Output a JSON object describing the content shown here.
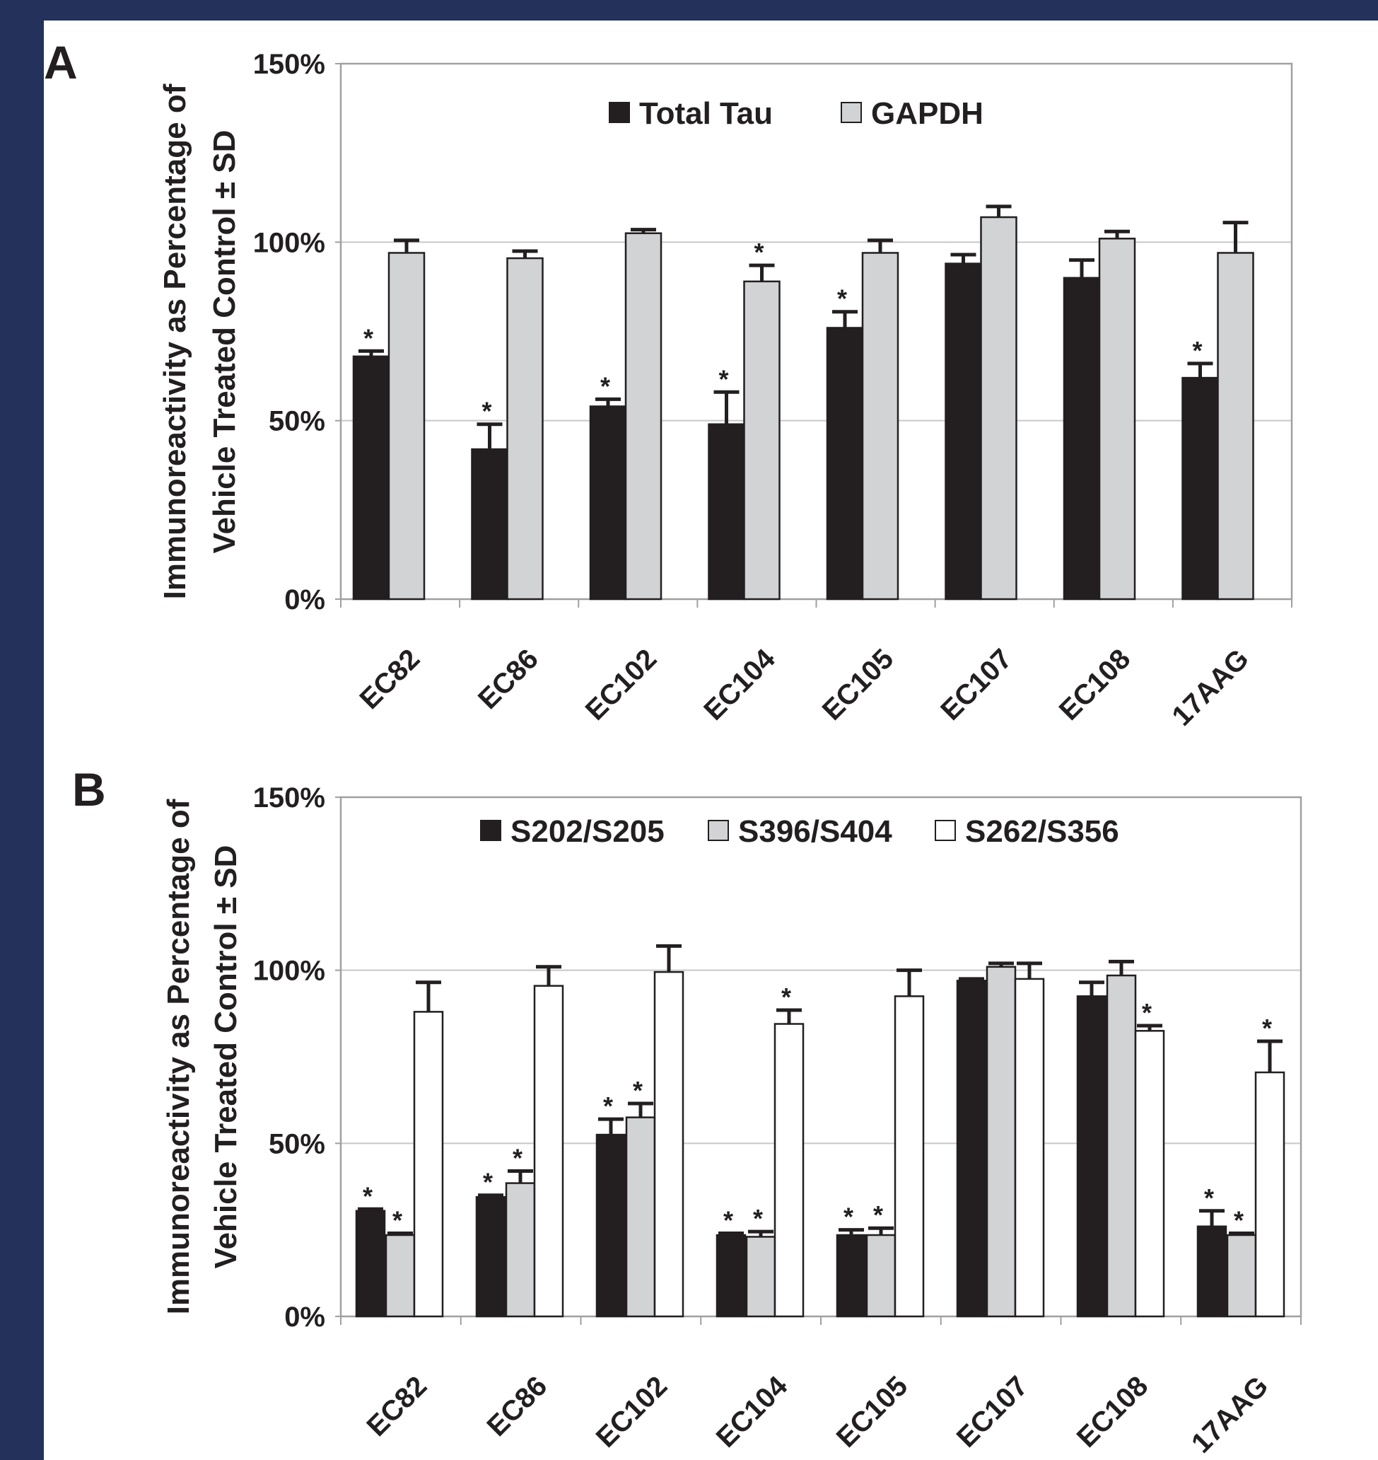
{
  "colors": {
    "frame": "#24315a",
    "panel": "#ffffff",
    "black_series": "#231f20",
    "gray_series": "#d1d3d4",
    "white_series": "#ffffff",
    "axis": "#a0a0a0",
    "grid": "#c8c8c8"
  },
  "chart_data": [
    {
      "panel_label": "A",
      "type": "bar",
      "ylabel_lines": [
        "Immunoreactivity as Percentage of",
        "Vehicle Treated Control ± SD"
      ],
      "ylim": [
        0,
        150
      ],
      "yticks": [
        0,
        50,
        100,
        150
      ],
      "ytick_labels": [
        "0%",
        "50%",
        "100%",
        "150%"
      ],
      "grid": true,
      "legend_position": "top-center",
      "categories": [
        "EC82",
        "EC86",
        "EC102",
        "EC104",
        "EC105",
        "EC107",
        "EC108",
        "17AAG"
      ],
      "series": [
        {
          "name": "Total Tau",
          "color": "#231f20",
          "values": [
            68,
            42,
            54,
            49,
            76,
            94,
            90,
            62
          ],
          "errors": [
            1.5,
            7,
            2,
            9,
            4.5,
            2.5,
            5,
            4
          ],
          "significant": [
            true,
            true,
            true,
            true,
            true,
            false,
            false,
            true
          ]
        },
        {
          "name": "GAPDH",
          "color": "#d1d3d4",
          "values": [
            97,
            95.5,
            102.5,
            89,
            97,
            107,
            101,
            97
          ],
          "errors": [
            3.5,
            2,
            1,
            4.5,
            3.5,
            3,
            2,
            8.5
          ],
          "significant": [
            false,
            false,
            false,
            true,
            false,
            false,
            false,
            false
          ]
        }
      ],
      "significance_marker": "*"
    },
    {
      "panel_label": "B",
      "type": "bar",
      "ylabel_lines": [
        "Immunoreactivity as Percentage of",
        "Vehicle Treated Control ± SD"
      ],
      "ylim": [
        0,
        150
      ],
      "yticks": [
        0,
        50,
        100,
        150
      ],
      "ytick_labels": [
        "0%",
        "50%",
        "100%",
        "150%"
      ],
      "grid": true,
      "legend_position": "top-center",
      "categories": [
        "EC82",
        "EC86",
        "EC102",
        "EC104",
        "EC105",
        "EC107",
        "EC108",
        "17AAG"
      ],
      "series": [
        {
          "name": "S202/S205",
          "color": "#231f20",
          "values": [
            30.5,
            34.5,
            52.5,
            23.5,
            23.5,
            97,
            92.5,
            26
          ],
          "errors": [
            0.5,
            0.5,
            4.5,
            0.5,
            1.5,
            0.5,
            4,
            4.5
          ],
          "significant": [
            true,
            true,
            true,
            true,
            true,
            false,
            false,
            true
          ]
        },
        {
          "name": "S396/S404",
          "color": "#d1d3d4",
          "values": [
            23.5,
            38.5,
            57.5,
            23,
            23.5,
            101,
            98.5,
            23.5
          ],
          "errors": [
            0.5,
            3.5,
            4,
            1.5,
            2,
            1,
            4,
            0.5
          ],
          "significant": [
            true,
            true,
            true,
            true,
            true,
            false,
            false,
            true
          ]
        },
        {
          "name": "S262/S356",
          "color": "#ffffff",
          "values": [
            88,
            95.5,
            99.5,
            84.5,
            92.5,
            97.5,
            82.5,
            70.5
          ],
          "errors": [
            8.5,
            5.5,
            7.5,
            4,
            7.5,
            4.5,
            1.5,
            9
          ],
          "significant": [
            false,
            false,
            false,
            true,
            false,
            false,
            true,
            true
          ]
        }
      ],
      "significance_marker": "*"
    }
  ]
}
